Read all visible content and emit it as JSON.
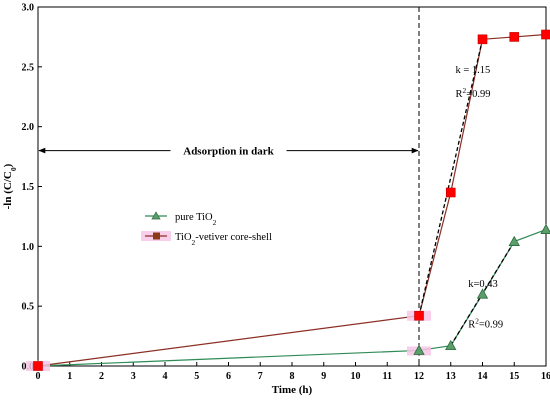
{
  "chart_data": {
    "type": "line",
    "xlabel": "Time (h)",
    "ylabel": "-ln (C/C₀)",
    "xlim": [
      0,
      16
    ],
    "ylim": [
      0,
      3.0
    ],
    "x_ticks": [
      0,
      1,
      2,
      3,
      4,
      5,
      6,
      7,
      8,
      9,
      10,
      11,
      12,
      13,
      14,
      15,
      16
    ],
    "y_ticks": [
      0.0,
      0.5,
      1.0,
      1.5,
      2.0,
      2.5,
      3.0
    ],
    "grid": false,
    "legend_position": "center-left",
    "series": [
      {
        "name": "pure TiO₂",
        "marker": "triangle",
        "color": "#2e8b57",
        "x": [
          0,
          12,
          13,
          14,
          15,
          16
        ],
        "y": [
          0.0,
          0.13,
          0.17,
          0.6,
          1.04,
          1.14
        ]
      },
      {
        "name": "TiO₂-vetiver core-shell",
        "marker": "square",
        "color": "#ff0000",
        "line_color": "#8b2f24",
        "legend_marker_color": "#8b3a1a",
        "x": [
          0,
          12,
          13,
          14,
          15,
          16
        ],
        "y": [
          0.0,
          0.42,
          1.45,
          2.73,
          2.75,
          2.77
        ]
      }
    ],
    "fit_lines": [
      {
        "series": "TiO₂-vetiver core-shell",
        "x": [
          12,
          14
        ],
        "y": [
          0.42,
          2.73
        ],
        "style": "dashed"
      },
      {
        "series": "pure TiO₂",
        "x": [
          13,
          15
        ],
        "y": [
          0.17,
          1.04
        ],
        "style": "dashed"
      }
    ],
    "annotations": {
      "dark_line_x": 12,
      "adsorption_label": "Adsorption in dark",
      "adsorption_y": 1.8,
      "k_red": "k = 1.15",
      "r2_red": "R²=0.99",
      "k_green": "k=0.43",
      "r2_green": "R²=0.99"
    }
  }
}
